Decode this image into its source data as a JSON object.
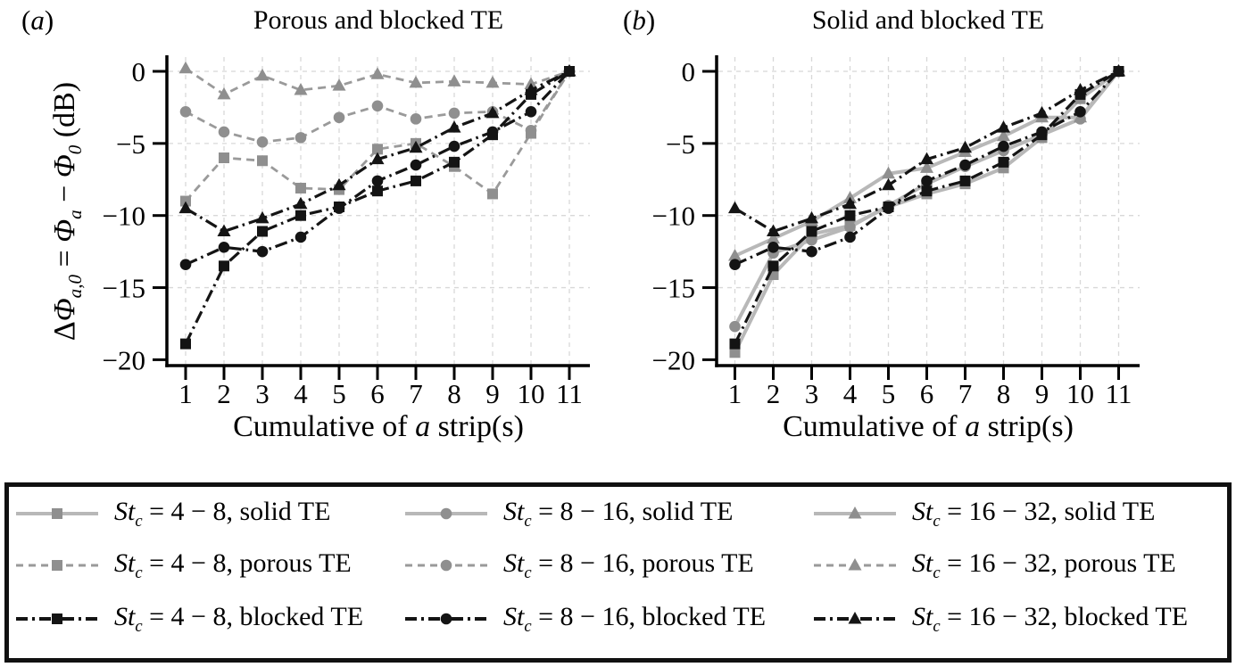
{
  "figure": {
    "panels": [
      {
        "label_open": "(",
        "label_char": "a",
        "label_close": ")",
        "title": "Porous and blocked TE"
      },
      {
        "label_open": "(",
        "label_char": "b",
        "label_close": ")",
        "title": "Solid and blocked TE"
      }
    ],
    "xlabel": {
      "pre": "Cumulative of ",
      "var": "a",
      "post": " strip(s)"
    },
    "ylabel": {
      "delta": "Δ",
      "phi_a0": "Φ",
      "sub_a0": "a,0",
      "eq": " = ",
      "phi_a": "Φ",
      "sub_a": "a",
      "minus": " − ",
      "phi_0": "Φ",
      "sub_0": "0",
      "unit": " (dB)"
    }
  },
  "palette": {
    "solid_line": "#b8b8b8",
    "porous_line": "#9a9a9a",
    "gray_marker": "#8f8f8f",
    "blocked": "#141414",
    "grid": "#d8d8d8",
    "axis": "#000000",
    "background": "#ffffff",
    "legend_border": "#111111"
  },
  "chart_data": [
    {
      "panel": "a",
      "type": "line",
      "title": "Porous and blocked TE",
      "xlabel": "Cumulative of a strip(s)",
      "ylabel": "ΔΦa,0 = Φa − Φ0 (dB)",
      "x": [
        1,
        2,
        3,
        4,
        5,
        6,
        7,
        8,
        9,
        10,
        11
      ],
      "xticks": [
        "1",
        "2",
        "3",
        "4",
        "5",
        "6",
        "7",
        "8",
        "9",
        "10",
        "11"
      ],
      "yticks": [
        {
          "label": "0",
          "value": 0
        },
        {
          "label": "−5",
          "value": -5
        },
        {
          "label": "−10",
          "value": -10
        },
        {
          "label": "−15",
          "value": -15
        },
        {
          "label": "−20",
          "value": -20
        }
      ],
      "ylim": [
        -20,
        0.5
      ],
      "grid": true,
      "legend_position": "below figure",
      "series": [
        {
          "id": "porous-4-8",
          "name": "Stc = 4 − 8, porous TE",
          "style": "porous",
          "marker": "square",
          "values": [
            -9.0,
            -6.0,
            -6.2,
            -8.1,
            -8.2,
            -5.4,
            -5.0,
            -6.6,
            -8.5,
            -4.3,
            0
          ]
        },
        {
          "id": "porous-8-16",
          "name": "Stc = 8 − 16, porous TE",
          "style": "porous",
          "marker": "circle",
          "values": [
            -2.8,
            -4.2,
            -4.9,
            -4.6,
            -3.2,
            -2.4,
            -3.3,
            -2.9,
            -2.8,
            -4.1,
            0
          ]
        },
        {
          "id": "porous-16-32",
          "name": "Stc = 16 − 32, porous TE",
          "style": "porous",
          "marker": "triangle",
          "values": [
            0.2,
            -1.6,
            -0.3,
            -1.3,
            -1.0,
            -0.2,
            -0.8,
            -0.7,
            -0.8,
            -0.9,
            0
          ]
        },
        {
          "id": "blocked-4-8",
          "name": "Stc = 4 − 8, blocked TE",
          "style": "blocked",
          "marker": "square",
          "values": [
            -18.9,
            -13.5,
            -11.1,
            -10.0,
            -9.4,
            -8.3,
            -7.6,
            -6.3,
            -4.4,
            -1.6,
            0
          ]
        },
        {
          "id": "blocked-8-16",
          "name": "Stc = 8 − 16, blocked TE",
          "style": "blocked",
          "marker": "circle",
          "values": [
            -13.4,
            -12.2,
            -12.5,
            -11.5,
            -9.5,
            -7.6,
            -6.5,
            -5.2,
            -4.2,
            -2.8,
            0
          ]
        },
        {
          "id": "blocked-16-32",
          "name": "Stc = 16 − 32, blocked TE",
          "style": "blocked",
          "marker": "triangle",
          "values": [
            -9.5,
            -11.1,
            -10.2,
            -9.2,
            -7.9,
            -6.1,
            -5.3,
            -3.9,
            -2.9,
            -1.3,
            0
          ]
        }
      ]
    },
    {
      "panel": "b",
      "type": "line",
      "title": "Solid and blocked TE",
      "xlabel": "Cumulative of a strip(s)",
      "ylabel": "ΔΦa,0 = Φa − Φ0 (dB)",
      "x": [
        1,
        2,
        3,
        4,
        5,
        6,
        7,
        8,
        9,
        10,
        11
      ],
      "xticks": [
        "1",
        "2",
        "3",
        "4",
        "5",
        "6",
        "7",
        "8",
        "9",
        "10",
        "11"
      ],
      "yticks": [
        {
          "label": "0",
          "value": 0
        },
        {
          "label": "−5",
          "value": -5
        },
        {
          "label": "−10",
          "value": -10
        },
        {
          "label": "−15",
          "value": -15
        },
        {
          "label": "−20",
          "value": -20
        }
      ],
      "ylim": [
        -20,
        0.5
      ],
      "grid": true,
      "legend_position": "below figure",
      "series": [
        {
          "id": "solid-4-8",
          "name": "Stc = 4 − 8, solid TE",
          "style": "solid",
          "marker": "square",
          "values": [
            -19.5,
            -14.1,
            -11.3,
            -10.7,
            -9.4,
            -8.5,
            -7.8,
            -6.7,
            -4.6,
            -1.9,
            0
          ]
        },
        {
          "id": "solid-8-16",
          "name": "Stc = 8 − 16, solid TE",
          "style": "solid",
          "marker": "circle",
          "values": [
            -17.7,
            -12.6,
            -11.7,
            -10.8,
            -9.3,
            -7.8,
            -6.6,
            -5.5,
            -4.4,
            -3.3,
            0
          ]
        },
        {
          "id": "solid-16-32",
          "name": "Stc = 16 − 32, solid TE",
          "style": "solid",
          "marker": "triangle",
          "values": [
            -12.8,
            -11.6,
            -10.4,
            -8.8,
            -7.1,
            -6.7,
            -5.6,
            -4.5,
            -3.2,
            -3.2,
            0
          ]
        },
        {
          "id": "blocked-4-8",
          "name": "Stc = 4 − 8, blocked TE",
          "style": "blocked",
          "marker": "square",
          "values": [
            -18.9,
            -13.5,
            -11.1,
            -10.0,
            -9.4,
            -8.3,
            -7.6,
            -6.3,
            -4.4,
            -1.6,
            0
          ]
        },
        {
          "id": "blocked-8-16",
          "name": "Stc = 8 − 16, blocked TE",
          "style": "blocked",
          "marker": "circle",
          "values": [
            -13.4,
            -12.2,
            -12.5,
            -11.5,
            -9.5,
            -7.6,
            -6.5,
            -5.2,
            -4.2,
            -2.8,
            0
          ]
        },
        {
          "id": "blocked-16-32",
          "name": "Stc = 16 − 32, blocked TE",
          "style": "blocked",
          "marker": "triangle",
          "values": [
            -9.5,
            -11.1,
            -10.2,
            -9.2,
            -7.9,
            -6.1,
            -5.3,
            -3.9,
            -2.9,
            -1.3,
            0
          ]
        }
      ]
    }
  ],
  "legend": {
    "items": [
      {
        "id": "stc-4-8-solid",
        "st": "St",
        "sub": "c",
        "rest": " = 4 − 8, solid TE",
        "style": "solid",
        "marker": "square"
      },
      {
        "id": "stc-8-16-solid",
        "st": "St",
        "sub": "c",
        "rest": " = 8 − 16, solid TE",
        "style": "solid",
        "marker": "circle"
      },
      {
        "id": "stc-16-32-solid",
        "st": "St",
        "sub": "c",
        "rest": " = 16 − 32, solid TE",
        "style": "solid",
        "marker": "triangle"
      },
      {
        "id": "stc-4-8-porous",
        "st": "St",
        "sub": "c",
        "rest": " = 4 − 8, porous TE",
        "style": "porous",
        "marker": "square"
      },
      {
        "id": "stc-8-16-porous",
        "st": "St",
        "sub": "c",
        "rest": " = 8 − 16, porous TE",
        "style": "porous",
        "marker": "circle"
      },
      {
        "id": "stc-16-32-porous",
        "st": "St",
        "sub": "c",
        "rest": " = 16 − 32, porous TE",
        "style": "porous",
        "marker": "triangle"
      },
      {
        "id": "stc-4-8-blocked",
        "st": "St",
        "sub": "c",
        "rest": " = 4 − 8, blocked TE",
        "style": "blocked",
        "marker": "square"
      },
      {
        "id": "stc-8-16-blocked",
        "st": "St",
        "sub": "c",
        "rest": " = 8 − 16, blocked TE",
        "style": "blocked",
        "marker": "circle"
      },
      {
        "id": "stc-16-32-blocked",
        "st": "St",
        "sub": "c",
        "rest": " = 16 − 32, blocked TE",
        "style": "blocked",
        "marker": "triangle"
      }
    ]
  }
}
